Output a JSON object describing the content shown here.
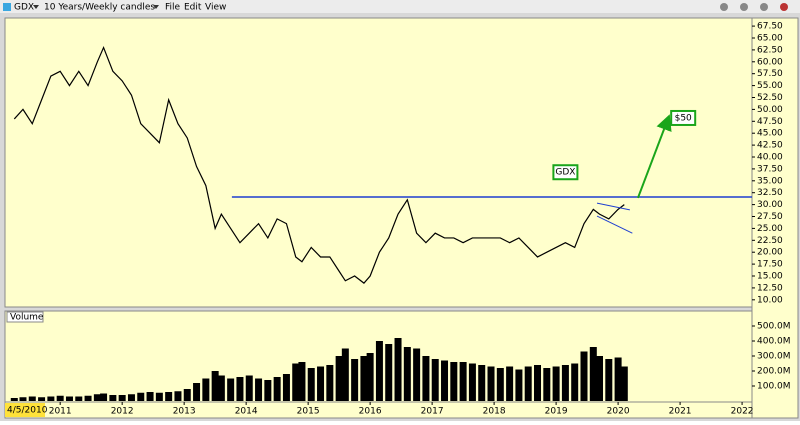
{
  "toolbar": {
    "symbol": "GDX",
    "interval": "10 Years/Weekly candles",
    "menus": [
      "File",
      "Edit",
      "View"
    ]
  },
  "chart_data": [
    {
      "type": "line",
      "name": "GDX",
      "color": "#000000",
      "xlim": [
        2010.11,
        2022.16
      ],
      "ylim": [
        8.49,
        69.2
      ],
      "yticks": [
        {
          "value": 10,
          "label": "10.00"
        },
        {
          "value": 12.5,
          "label": "12.50"
        },
        {
          "value": 15,
          "label": "15.00"
        },
        {
          "value": 17.5,
          "label": "17.50"
        },
        {
          "value": 20,
          "label": "20.00"
        },
        {
          "value": 22.5,
          "label": "22.50"
        },
        {
          "value": 25,
          "label": "25.00"
        },
        {
          "value": 27.5,
          "label": "27.50"
        },
        {
          "value": 30,
          "label": "30.00"
        },
        {
          "value": 32.5,
          "label": "32.50"
        },
        {
          "value": 35,
          "label": "35.00"
        },
        {
          "value": 37.5,
          "label": "37.50"
        },
        {
          "value": 40,
          "label": "40.00"
        },
        {
          "value": 42.5,
          "label": "42.50"
        },
        {
          "value": 45,
          "label": "45.00"
        },
        {
          "value": 47.5,
          "label": "47.50"
        },
        {
          "value": 50,
          "label": "50.00"
        },
        {
          "value": 52.5,
          "label": "52.50"
        },
        {
          "value": 55,
          "label": "55.00"
        },
        {
          "value": 57.5,
          "label": "57.50"
        },
        {
          "value": 60,
          "label": "60.00"
        },
        {
          "value": 62.5,
          "label": "62.50"
        },
        {
          "value": 65,
          "label": "65.00"
        },
        {
          "value": 67.5,
          "label": "67.50"
        }
      ],
      "x": [
        2010.26,
        2010.4,
        2010.55,
        2010.7,
        2010.85,
        2011.0,
        2011.15,
        2011.3,
        2011.45,
        2011.6,
        2011.7,
        2011.85,
        2012.0,
        2012.15,
        2012.3,
        2012.45,
        2012.6,
        2012.75,
        2012.9,
        2013.05,
        2013.2,
        2013.35,
        2013.5,
        2013.6,
        2013.75,
        2013.9,
        2014.05,
        2014.2,
        2014.35,
        2014.5,
        2014.65,
        2014.8,
        2014.9,
        2015.05,
        2015.2,
        2015.35,
        2015.5,
        2015.6,
        2015.75,
        2015.9,
        2016.0,
        2016.15,
        2016.3,
        2016.45,
        2016.6,
        2016.75,
        2016.9,
        2017.05,
        2017.2,
        2017.35,
        2017.5,
        2017.65,
        2017.8,
        2017.95,
        2018.1,
        2018.25,
        2018.4,
        2018.55,
        2018.7,
        2018.85,
        2019.0,
        2019.15,
        2019.3,
        2019.45,
        2019.6,
        2019.7,
        2019.85,
        2020.0,
        2020.1
      ],
      "values": [
        48,
        50,
        47,
        52,
        57,
        58,
        55,
        58,
        55,
        60,
        63,
        58,
        56,
        53,
        47,
        45,
        43,
        52,
        47,
        44,
        38,
        34,
        25,
        28,
        25,
        22,
        24,
        26,
        23,
        27,
        26,
        19,
        18,
        21,
        19,
        19,
        16,
        14,
        15,
        13.5,
        15,
        20,
        23,
        28,
        31,
        24,
        22,
        24,
        23,
        23,
        22,
        23,
        23,
        23,
        23,
        22,
        23,
        21,
        19,
        20,
        21,
        22,
        21,
        26,
        29,
        28,
        27,
        29,
        30
      ],
      "lines": [
        {
          "x": [
            2013.77,
            2022.16
          ],
          "y": [
            31.6,
            31.6
          ],
          "color": "#1f3fd0"
        },
        {
          "x": [
            2019.66,
            2020.19
          ],
          "y": [
            30.3,
            28.9
          ],
          "color": "#1f3fd0"
        },
        {
          "x": [
            2019.66,
            2020.23
          ],
          "y": [
            27.6,
            24.0
          ],
          "color": "#1f3fd0"
        }
      ],
      "arrows": [
        {
          "x": [
            2020.32,
            2020.81
          ],
          "y": [
            31.4,
            48.2
          ],
          "color": "#1aa51a"
        }
      ],
      "annotations": [
        {
          "text": "GDX",
          "x": 2019.15,
          "y": 36.8
        },
        {
          "text": "$50",
          "x": 2021.05,
          "y": 48.2
        }
      ]
    },
    {
      "type": "bar",
      "title": "Volume",
      "color": "#000000",
      "xlim": [
        2010.11,
        2022.16
      ],
      "ylim": [
        0,
        600
      ],
      "yticks": [
        {
          "value": 100,
          "label": "100.0M"
        },
        {
          "value": 200,
          "label": "200.0M"
        },
        {
          "value": 300,
          "label": "300.0M"
        },
        {
          "value": 400,
          "label": "400.0M"
        },
        {
          "value": 500,
          "label": "500.0M"
        }
      ],
      "xticks": [
        {
          "value": 2010.26,
          "label": "4/5/2010"
        },
        2011,
        2012,
        2013,
        2014,
        2015,
        2016,
        2017,
        2018,
        2019,
        2020,
        2021,
        2022
      ],
      "x": [
        2010.26,
        2010.4,
        2010.55,
        2010.7,
        2010.85,
        2011.0,
        2011.15,
        2011.3,
        2011.45,
        2011.6,
        2011.7,
        2011.85,
        2012.0,
        2012.15,
        2012.3,
        2012.45,
        2012.6,
        2012.75,
        2012.9,
        2013.05,
        2013.2,
        2013.35,
        2013.5,
        2013.6,
        2013.75,
        2013.9,
        2014.05,
        2014.2,
        2014.35,
        2014.5,
        2014.65,
        2014.8,
        2014.9,
        2015.05,
        2015.2,
        2015.35,
        2015.5,
        2015.6,
        2015.75,
        2015.9,
        2016.0,
        2016.15,
        2016.3,
        2016.45,
        2016.6,
        2016.75,
        2016.9,
        2017.05,
        2017.2,
        2017.35,
        2017.5,
        2017.65,
        2017.8,
        2017.95,
        2018.1,
        2018.25,
        2018.4,
        2018.55,
        2018.7,
        2018.85,
        2019.0,
        2019.15,
        2019.3,
        2019.45,
        2019.6,
        2019.7,
        2019.85,
        2020.0,
        2020.1
      ],
      "values": [
        20,
        25,
        30,
        25,
        30,
        35,
        30,
        30,
        35,
        45,
        50,
        40,
        40,
        45,
        55,
        60,
        55,
        60,
        65,
        80,
        120,
        150,
        200,
        170,
        150,
        160,
        170,
        150,
        140,
        160,
        180,
        250,
        260,
        220,
        230,
        240,
        300,
        350,
        280,
        300,
        320,
        400,
        380,
        420,
        360,
        350,
        300,
        280,
        270,
        260,
        260,
        250,
        240,
        230,
        220,
        230,
        210,
        230,
        240,
        220,
        230,
        240,
        250,
        330,
        360,
        300,
        280,
        290,
        230
      ]
    }
  ]
}
